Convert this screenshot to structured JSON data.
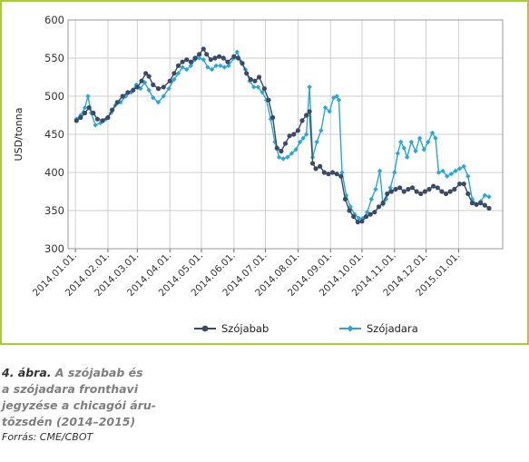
{
  "chart_data": {
    "type": "line",
    "xlabel": "",
    "ylabel": "USD/tonna",
    "ylim": [
      300,
      600
    ],
    "yticks": [
      300,
      350,
      400,
      450,
      500,
      550,
      600
    ],
    "xlim": [
      "2013-12-25",
      "2015-02-12"
    ],
    "xticks": [
      {
        "label": "2014.01.01.",
        "date": "2014-01-01"
      },
      {
        "label": "2014.02.01.",
        "date": "2014-02-01"
      },
      {
        "label": "2014.03.01.",
        "date": "2014-03-01"
      },
      {
        "label": "2014.04.01.",
        "date": "2014-04-01"
      },
      {
        "label": "2014.05.01.",
        "date": "2014-05-01"
      },
      {
        "label": "2014.06.01.",
        "date": "2014-06-01"
      },
      {
        "label": "2014.07.01.",
        "date": "2014-07-01"
      },
      {
        "label": "2014.08.01.",
        "date": "2014-08-01"
      },
      {
        "label": "2014.09.01.",
        "date": "2014-09-01"
      },
      {
        "label": "2014.10.01.",
        "date": "2014-10-01"
      },
      {
        "label": "2014.11.01.",
        "date": "2014-11-01"
      },
      {
        "label": "2014.12.01.",
        "date": "2014-12-01"
      },
      {
        "label": "2015.01.01.",
        "date": "2015-01-01"
      }
    ],
    "grid": true,
    "legend_position": "bottom",
    "series": [
      {
        "name": "Szójabab",
        "color": "#3b4a66",
        "points": [
          [
            "2014-01-02",
            468
          ],
          [
            "2014-01-06",
            472
          ],
          [
            "2014-01-10",
            478
          ],
          [
            "2014-01-14",
            485
          ],
          [
            "2014-01-18",
            478
          ],
          [
            "2014-01-22",
            470
          ],
          [
            "2014-01-27",
            468
          ],
          [
            "2014-02-01",
            472
          ],
          [
            "2014-02-05",
            482
          ],
          [
            "2014-02-10",
            492
          ],
          [
            "2014-02-15",
            500
          ],
          [
            "2014-02-20",
            505
          ],
          [
            "2014-02-25",
            508
          ],
          [
            "2014-03-01",
            512
          ],
          [
            "2014-03-05",
            520
          ],
          [
            "2014-03-09",
            530
          ],
          [
            "2014-03-12",
            526
          ],
          [
            "2014-03-16",
            515
          ],
          [
            "2014-03-21",
            510
          ],
          [
            "2014-03-26",
            512
          ],
          [
            "2014-04-01",
            520
          ],
          [
            "2014-04-05",
            530
          ],
          [
            "2014-04-09",
            540
          ],
          [
            "2014-04-13",
            545
          ],
          [
            "2014-04-17",
            548
          ],
          [
            "2014-04-21",
            545
          ],
          [
            "2014-04-25",
            550
          ],
          [
            "2014-04-29",
            555
          ],
          [
            "2014-05-03",
            562
          ],
          [
            "2014-05-06",
            555
          ],
          [
            "2014-05-10",
            548
          ],
          [
            "2014-05-14",
            550
          ],
          [
            "2014-05-18",
            552
          ],
          [
            "2014-05-22",
            550
          ],
          [
            "2014-05-26",
            545
          ],
          [
            "2014-06-01",
            552
          ],
          [
            "2014-06-05",
            550
          ],
          [
            "2014-06-09",
            543
          ],
          [
            "2014-06-13",
            530
          ],
          [
            "2014-06-17",
            522
          ],
          [
            "2014-06-21",
            520
          ],
          [
            "2014-06-25",
            525
          ],
          [
            "2014-06-30",
            510
          ],
          [
            "2014-07-04",
            495
          ],
          [
            "2014-07-08",
            472
          ],
          [
            "2014-07-12",
            432
          ],
          [
            "2014-07-16",
            428
          ],
          [
            "2014-07-20",
            438
          ],
          [
            "2014-07-24",
            448
          ],
          [
            "2014-07-28",
            450
          ],
          [
            "2014-08-01",
            455
          ],
          [
            "2014-08-05",
            468
          ],
          [
            "2014-08-09",
            475
          ],
          [
            "2014-08-12",
            480
          ],
          [
            "2014-08-15",
            412
          ],
          [
            "2014-08-18",
            405
          ],
          [
            "2014-08-22",
            408
          ],
          [
            "2014-08-26",
            400
          ],
          [
            "2014-08-30",
            398
          ],
          [
            "2014-09-03",
            400
          ],
          [
            "2014-09-07",
            398
          ],
          [
            "2014-09-11",
            395
          ],
          [
            "2014-09-15",
            365
          ],
          [
            "2014-09-19",
            350
          ],
          [
            "2014-09-23",
            342
          ],
          [
            "2014-09-27",
            335
          ],
          [
            "2014-10-01",
            336
          ],
          [
            "2014-10-05",
            342
          ],
          [
            "2014-10-09",
            345
          ],
          [
            "2014-10-13",
            348
          ],
          [
            "2014-10-17",
            355
          ],
          [
            "2014-10-21",
            360
          ],
          [
            "2014-10-25",
            372
          ],
          [
            "2014-10-29",
            375
          ],
          [
            "2014-11-02",
            378
          ],
          [
            "2014-11-06",
            380
          ],
          [
            "2014-11-10",
            375
          ],
          [
            "2014-11-14",
            378
          ],
          [
            "2014-11-18",
            380
          ],
          [
            "2014-11-22",
            375
          ],
          [
            "2014-11-26",
            372
          ],
          [
            "2014-11-30",
            375
          ],
          [
            "2014-12-04",
            378
          ],
          [
            "2014-12-08",
            382
          ],
          [
            "2014-12-12",
            380
          ],
          [
            "2014-12-16",
            375
          ],
          [
            "2014-12-20",
            372
          ],
          [
            "2014-12-24",
            375
          ],
          [
            "2014-12-28",
            378
          ],
          [
            "2015-01-02",
            385
          ],
          [
            "2015-01-06",
            385
          ],
          [
            "2015-01-10",
            372
          ],
          [
            "2015-01-14",
            360
          ],
          [
            "2015-01-18",
            358
          ],
          [
            "2015-01-22",
            360
          ],
          [
            "2015-01-26",
            357
          ],
          [
            "2015-01-30",
            353
          ]
        ]
      },
      {
        "name": "Szójadara",
        "color": "#29a7d8",
        "points": [
          [
            "2014-01-02",
            470
          ],
          [
            "2014-01-06",
            475
          ],
          [
            "2014-01-10",
            485
          ],
          [
            "2014-01-13",
            500
          ],
          [
            "2014-01-16",
            478
          ],
          [
            "2014-01-20",
            462
          ],
          [
            "2014-01-25",
            465
          ],
          [
            "2014-01-30",
            470
          ],
          [
            "2014-02-04",
            478
          ],
          [
            "2014-02-08",
            488
          ],
          [
            "2014-02-13",
            492
          ],
          [
            "2014-02-18",
            500
          ],
          [
            "2014-02-23",
            505
          ],
          [
            "2014-02-28",
            515
          ],
          [
            "2014-03-04",
            510
          ],
          [
            "2014-03-08",
            518
          ],
          [
            "2014-03-12",
            508
          ],
          [
            "2014-03-16",
            498
          ],
          [
            "2014-03-21",
            492
          ],
          [
            "2014-03-26",
            500
          ],
          [
            "2014-03-31",
            510
          ],
          [
            "2014-04-05",
            522
          ],
          [
            "2014-04-09",
            530
          ],
          [
            "2014-04-13",
            538
          ],
          [
            "2014-04-17",
            535
          ],
          [
            "2014-04-21",
            540
          ],
          [
            "2014-04-25",
            548
          ],
          [
            "2014-04-29",
            550
          ],
          [
            "2014-05-03",
            548
          ],
          [
            "2014-05-07",
            538
          ],
          [
            "2014-05-11",
            535
          ],
          [
            "2014-05-15",
            540
          ],
          [
            "2014-05-19",
            540
          ],
          [
            "2014-05-23",
            538
          ],
          [
            "2014-05-27",
            540
          ],
          [
            "2014-06-01",
            550
          ],
          [
            "2014-06-04",
            558
          ],
          [
            "2014-06-08",
            545
          ],
          [
            "2014-06-12",
            535
          ],
          [
            "2014-06-16",
            520
          ],
          [
            "2014-06-20",
            512
          ],
          [
            "2014-06-24",
            512
          ],
          [
            "2014-06-28",
            505
          ],
          [
            "2014-07-02",
            495
          ],
          [
            "2014-07-06",
            470
          ],
          [
            "2014-07-10",
            440
          ],
          [
            "2014-07-14",
            420
          ],
          [
            "2014-07-18",
            418
          ],
          [
            "2014-07-22",
            420
          ],
          [
            "2014-07-26",
            425
          ],
          [
            "2014-07-30",
            430
          ],
          [
            "2014-08-03",
            440
          ],
          [
            "2014-08-06",
            445
          ],
          [
            "2014-08-09",
            450
          ],
          [
            "2014-08-12",
            512
          ],
          [
            "2014-08-15",
            420
          ],
          [
            "2014-08-19",
            440
          ],
          [
            "2014-08-23",
            455
          ],
          [
            "2014-08-27",
            485
          ],
          [
            "2014-08-31",
            480
          ],
          [
            "2014-09-04",
            498
          ],
          [
            "2014-09-07",
            500
          ],
          [
            "2014-09-09",
            495
          ],
          [
            "2014-09-12",
            400
          ],
          [
            "2014-09-16",
            370
          ],
          [
            "2014-09-20",
            355
          ],
          [
            "2014-09-24",
            345
          ],
          [
            "2014-09-28",
            340
          ],
          [
            "2014-10-02",
            340
          ],
          [
            "2014-10-06",
            348
          ],
          [
            "2014-10-10",
            365
          ],
          [
            "2014-10-14",
            378
          ],
          [
            "2014-10-18",
            402
          ],
          [
            "2014-10-21",
            358
          ],
          [
            "2014-10-24",
            365
          ],
          [
            "2014-10-28",
            380
          ],
          [
            "2014-11-01",
            400
          ],
          [
            "2014-11-04",
            425
          ],
          [
            "2014-11-07",
            440
          ],
          [
            "2014-11-10",
            432
          ],
          [
            "2014-11-13",
            420
          ],
          [
            "2014-11-17",
            440
          ],
          [
            "2014-11-21",
            428
          ],
          [
            "2014-11-25",
            445
          ],
          [
            "2014-11-29",
            430
          ],
          [
            "2014-12-03",
            440
          ],
          [
            "2014-12-07",
            452
          ],
          [
            "2014-12-10",
            445
          ],
          [
            "2014-12-13",
            400
          ],
          [
            "2014-12-17",
            402
          ],
          [
            "2014-12-21",
            395
          ],
          [
            "2014-12-25",
            398
          ],
          [
            "2014-12-29",
            402
          ],
          [
            "2015-01-02",
            405
          ],
          [
            "2015-01-06",
            408
          ],
          [
            "2015-01-10",
            395
          ],
          [
            "2015-01-14",
            365
          ],
          [
            "2015-01-18",
            358
          ],
          [
            "2015-01-22",
            362
          ],
          [
            "2015-01-26",
            370
          ],
          [
            "2015-01-30",
            368
          ]
        ]
      }
    ]
  },
  "caption": {
    "number": "4. ábra.",
    "line1": "A szójabab és",
    "line2": "a szójadara fronthavi",
    "line3": "jegyzése a chicagói áru-",
    "line4": "tőzsdén (2014–2015)",
    "source": "Forrás: CME/CBOT"
  }
}
